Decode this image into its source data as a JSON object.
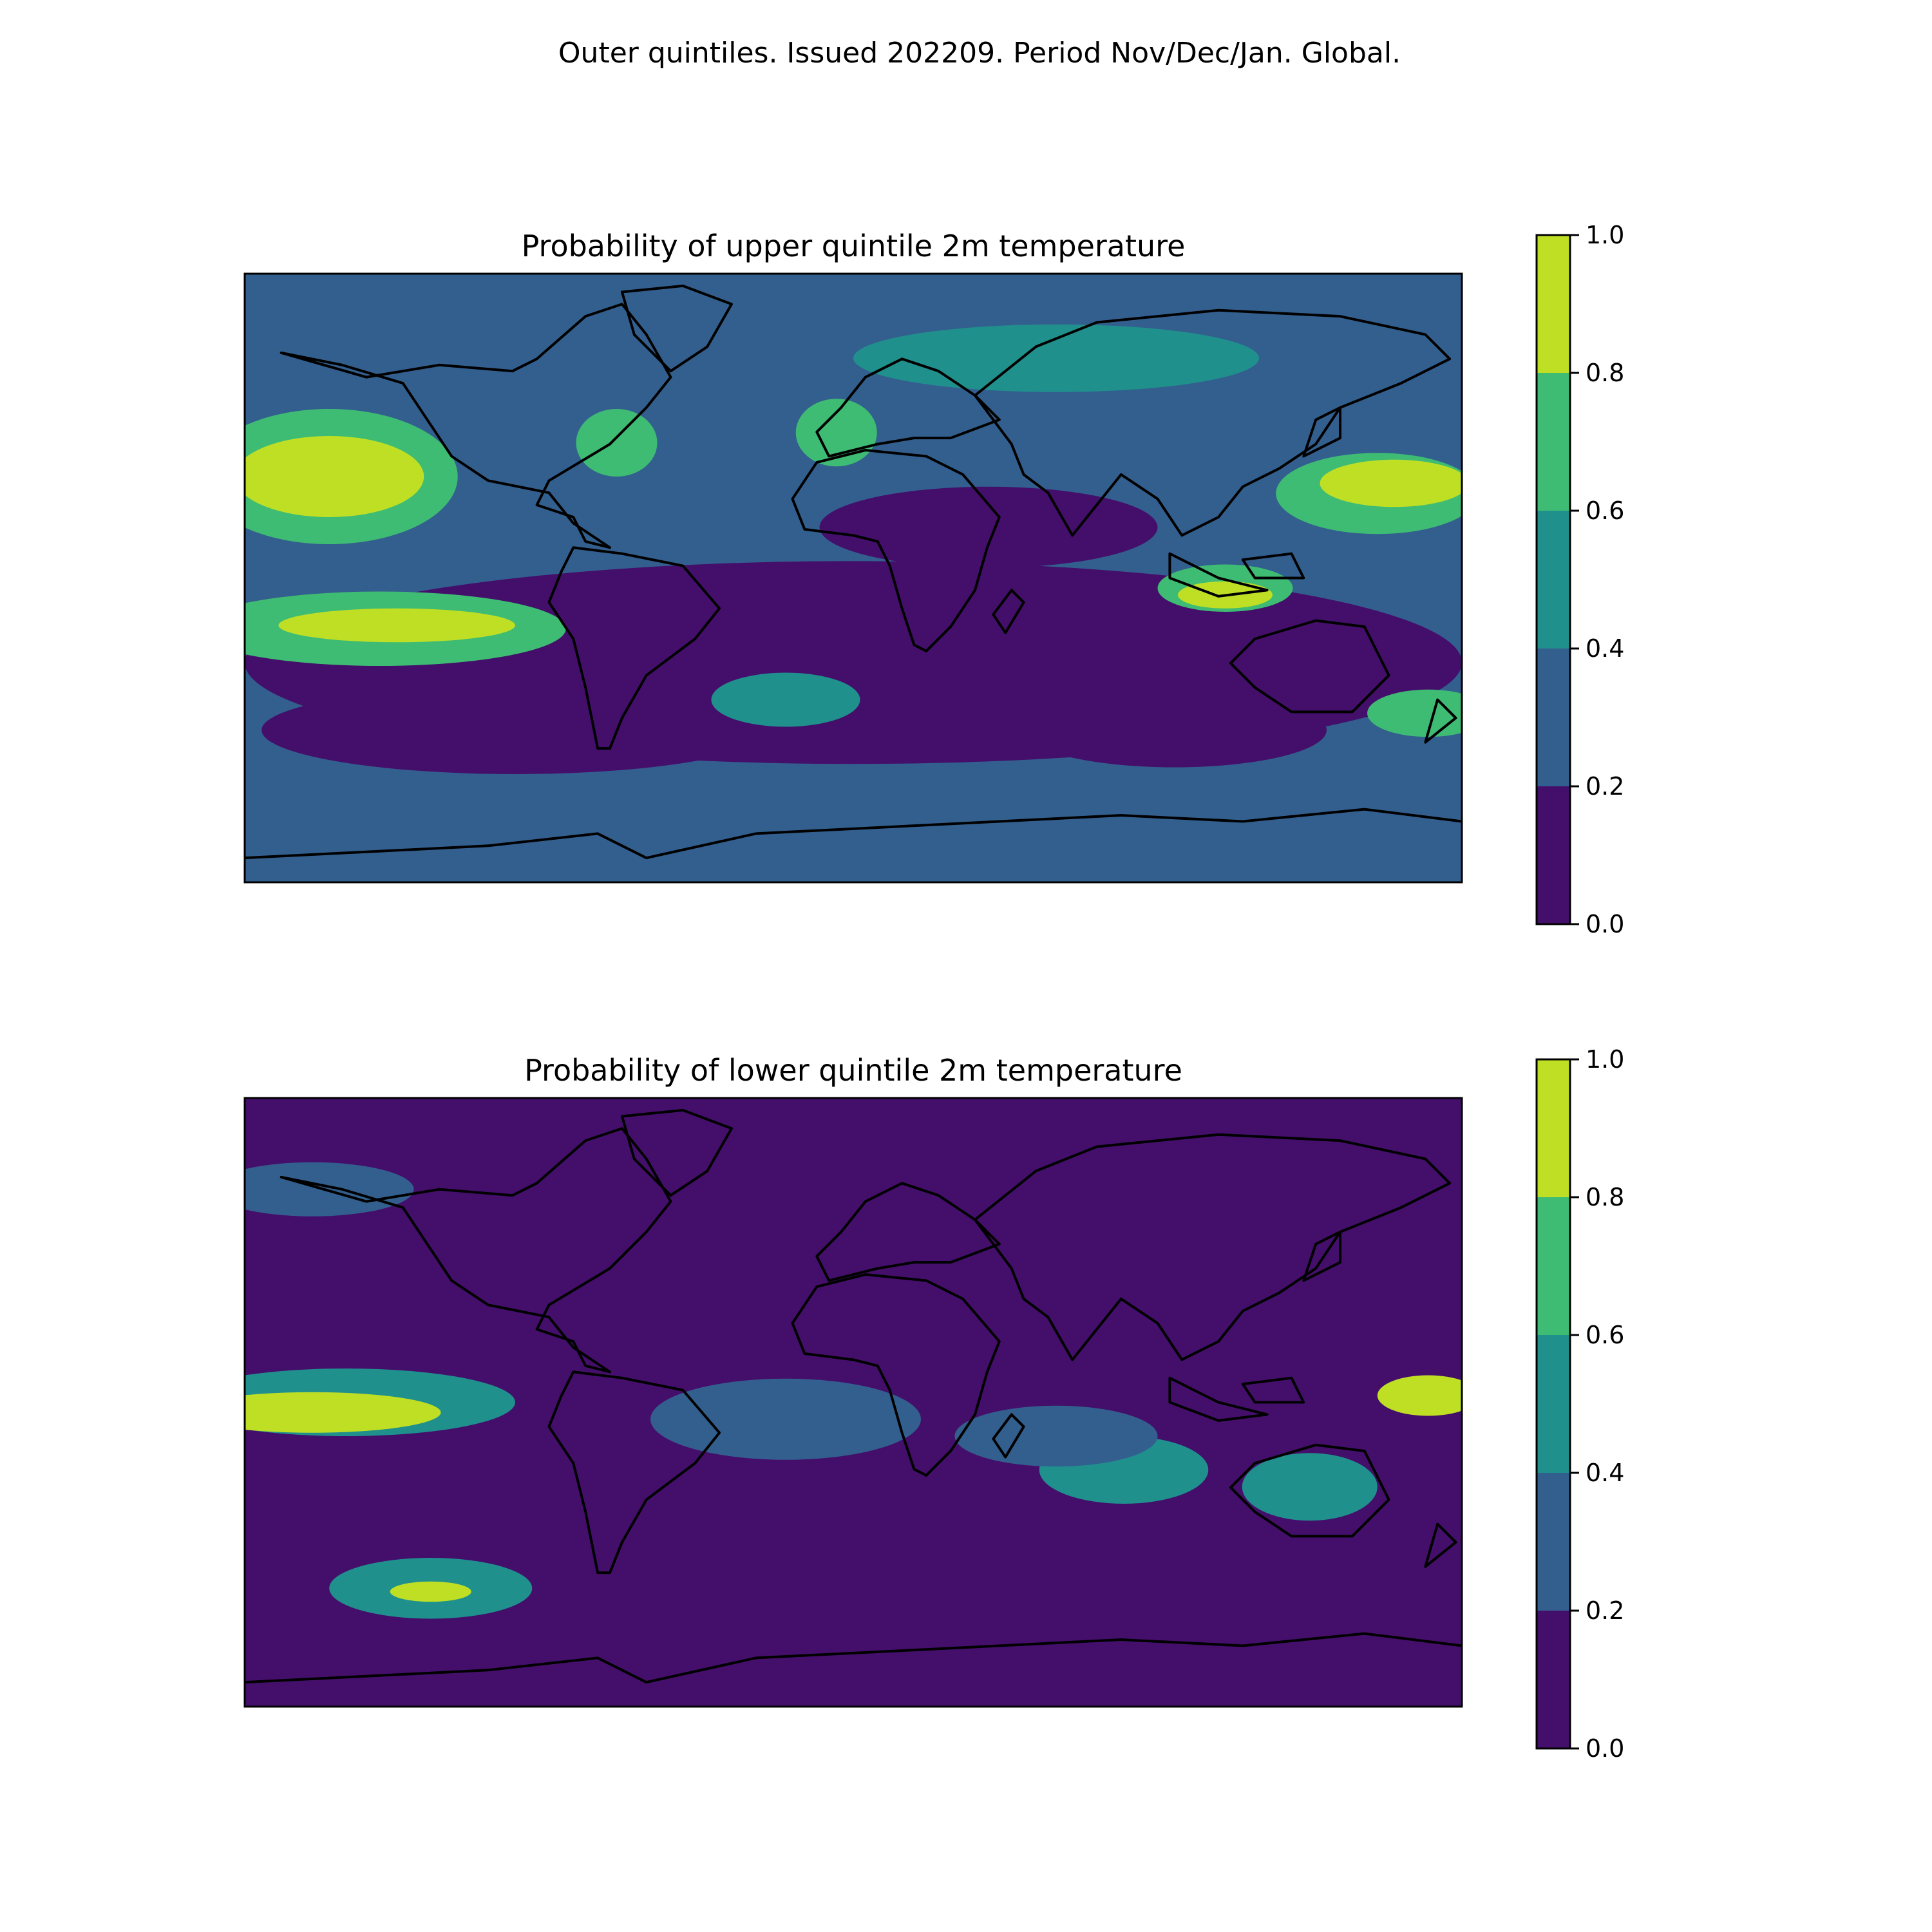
{
  "figure": {
    "title": "Outer quintiles. Issued 202209. Period Nov/Dec/Jan. Global."
  },
  "colors": {
    "levels": [
      "#440f6b",
      "#335f8e",
      "#20908d",
      "#3fbc73",
      "#bfdf25"
    ],
    "coastline": "#000000"
  },
  "chart_data": [
    {
      "type": "heatmap",
      "title": "Probability of upper quintile 2m temperature",
      "projection": "plate carree, global",
      "colorbar": {
        "ticks": [
          "0.0",
          "0.2",
          "0.4",
          "0.6",
          "0.8",
          "1.0"
        ],
        "levels": [
          0.0,
          0.2,
          0.4,
          0.6,
          0.8,
          1.0
        ]
      },
      "background_level": 0.3,
      "regions": [
        {
          "lon": 0,
          "lat": -25,
          "rx": 180,
          "ry": 30,
          "value": 0.1
        },
        {
          "lon": -100,
          "lat": -45,
          "rx": 75,
          "ry": 13,
          "value": 0.1
        },
        {
          "lon": 40,
          "lat": 15,
          "rx": 50,
          "ry": 12,
          "value": 0.1
        },
        {
          "lon": 95,
          "lat": -45,
          "rx": 45,
          "ry": 11,
          "value": 0.1
        },
        {
          "lon": -155,
          "lat": 30,
          "rx": 38,
          "ry": 20,
          "value": 0.7
        },
        {
          "lon": -155,
          "lat": 30,
          "rx": 28,
          "ry": 12,
          "value": 0.9
        },
        {
          "lon": -140,
          "lat": -15,
          "rx": 55,
          "ry": 11,
          "value": 0.7
        },
        {
          "lon": -135,
          "lat": -14,
          "rx": 35,
          "ry": 5,
          "value": 0.9
        },
        {
          "lon": 155,
          "lat": 25,
          "rx": 30,
          "ry": 12,
          "value": 0.7
        },
        {
          "lon": 160,
          "lat": 28,
          "rx": 22,
          "ry": 7,
          "value": 0.9
        },
        {
          "lon": 110,
          "lat": -3,
          "rx": 20,
          "ry": 7,
          "value": 0.7
        },
        {
          "lon": 110,
          "lat": -5,
          "rx": 14,
          "ry": 4,
          "value": 0.9
        },
        {
          "lon": -70,
          "lat": 40,
          "rx": 12,
          "ry": 10,
          "value": 0.7
        },
        {
          "lon": -5,
          "lat": 43,
          "rx": 12,
          "ry": 10,
          "value": 0.7
        },
        {
          "lon": 60,
          "lat": 65,
          "rx": 60,
          "ry": 10,
          "value": 0.5
        },
        {
          "lon": -20,
          "lat": -36,
          "rx": 22,
          "ry": 8,
          "value": 0.5
        },
        {
          "lon": 170,
          "lat": -40,
          "rx": 18,
          "ry": 7,
          "value": 0.7
        }
      ]
    },
    {
      "type": "heatmap",
      "title": "Probability of lower quintile 2m temperature",
      "projection": "plate carree, global",
      "colorbar": {
        "ticks": [
          "0.0",
          "0.2",
          "0.4",
          "0.6",
          "0.8",
          "1.0"
        ],
        "levels": [
          0.0,
          0.2,
          0.4,
          0.6,
          0.8,
          1.0
        ]
      },
      "background_level": 0.1,
      "regions": [
        {
          "lon": -150,
          "lat": 0,
          "rx": 50,
          "ry": 10,
          "value": 0.5
        },
        {
          "lon": -160,
          "lat": -3,
          "rx": 38,
          "ry": 6,
          "value": 0.9
        },
        {
          "lon": -125,
          "lat": -55,
          "rx": 30,
          "ry": 9,
          "value": 0.5
        },
        {
          "lon": -125,
          "lat": -56,
          "rx": 12,
          "ry": 3,
          "value": 0.9
        },
        {
          "lon": 170,
          "lat": 2,
          "rx": 15,
          "ry": 6,
          "value": 0.9
        },
        {
          "lon": 135,
          "lat": -25,
          "rx": 20,
          "ry": 10,
          "value": 0.5
        },
        {
          "lon": 80,
          "lat": -20,
          "rx": 25,
          "ry": 10,
          "value": 0.5
        },
        {
          "lon": 60,
          "lat": -10,
          "rx": 30,
          "ry": 9,
          "value": 0.3
        },
        {
          "lon": -160,
          "lat": 63,
          "rx": 30,
          "ry": 8,
          "value": 0.3
        },
        {
          "lon": -20,
          "lat": -5,
          "rx": 40,
          "ry": 12,
          "value": 0.3
        }
      ]
    }
  ]
}
